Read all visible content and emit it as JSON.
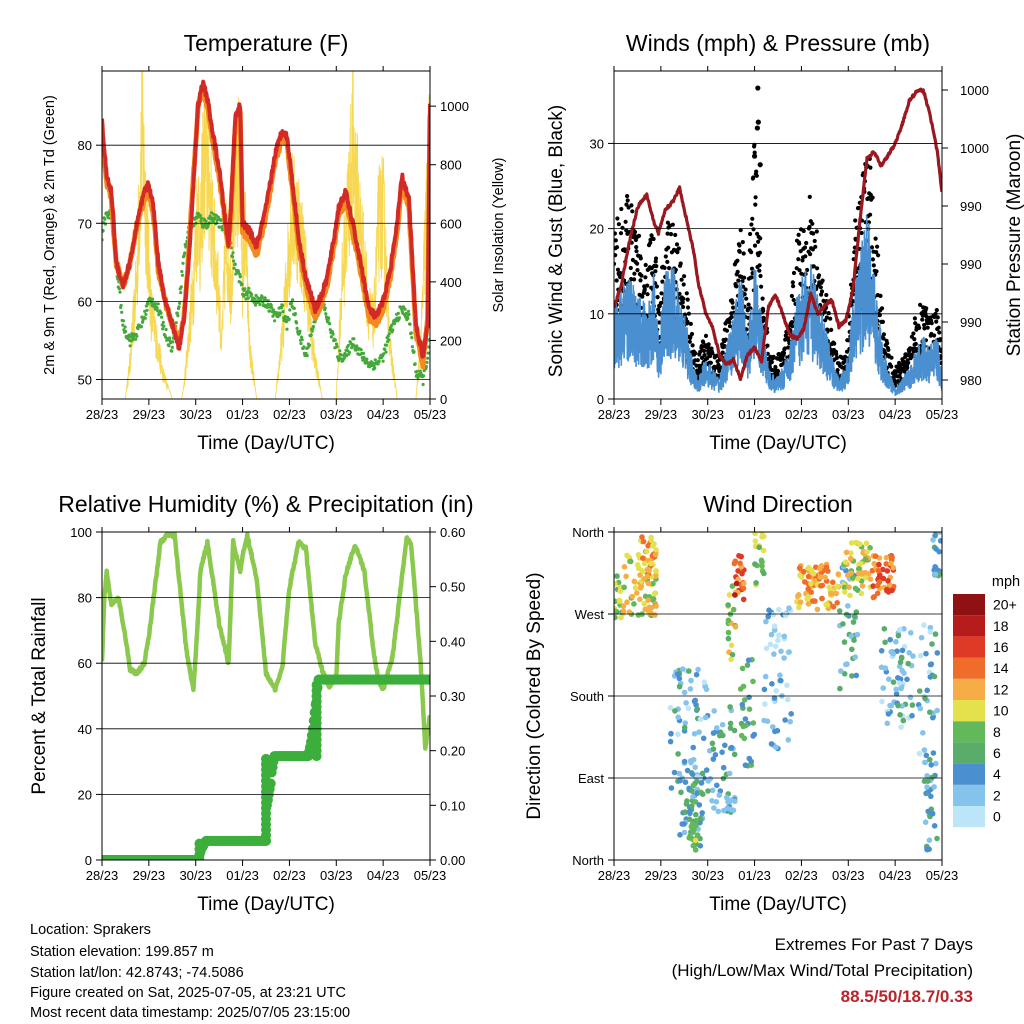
{
  "colors": {
    "temp2m": "#d42a26",
    "temp9m": "#f28a1e",
    "dewpoint": "#45a83a",
    "solar": "#f5d64a",
    "gust": "#000000",
    "wind": "#4a8fcf",
    "pressure": "#9a1820",
    "rh": "#8ac84e",
    "precip": "#3cae3c",
    "extremes": "#b8252a"
  },
  "x_ticks": [
    "28/23",
    "29/23",
    "30/23",
    "01/23",
    "02/23",
    "03/23",
    "04/23",
    "05/23"
  ],
  "chart_data": [
    {
      "id": "temperature",
      "type": "line",
      "title": "Temperature (F)",
      "xlabel": "Time (Day/UTC)",
      "ylabel": "2m & 9m T (Red, Orange) & 2m Td (Green)",
      "ylabel_right": "Solar Insolation (Yellow)",
      "ylim": [
        47.5,
        89.5
      ],
      "yticks": [
        50,
        60,
        70,
        80
      ],
      "ylim_right": [
        0,
        1120
      ],
      "yticks_right": [
        0,
        200,
        400,
        600,
        800,
        1000
      ],
      "grid": true,
      "x": [
        0,
        0.04,
        0.1,
        0.2,
        0.25,
        0.3,
        0.45,
        0.6,
        0.75,
        0.9,
        1.0,
        1.1,
        1.2,
        1.35,
        1.5,
        1.65,
        1.75,
        1.85,
        1.95,
        2.05,
        2.15,
        2.25,
        2.35,
        2.5,
        2.7,
        2.75,
        2.85,
        2.95,
        3.0,
        3.15,
        3.3,
        3.5,
        3.7,
        3.85,
        3.95,
        4.05,
        4.2,
        4.35,
        4.55,
        4.7,
        4.8,
        4.95,
        5.05,
        5.2,
        5.35,
        5.55,
        5.7,
        5.85,
        6.0,
        6.15,
        6.3,
        6.4,
        6.55,
        6.7,
        6.85,
        6.95,
        7.0
      ],
      "series": [
        {
          "key": "temp2m",
          "values": [
            83,
            80,
            76,
            74,
            70,
            65,
            62,
            65,
            70,
            74,
            75,
            72,
            65,
            60,
            57,
            54,
            58,
            65,
            75,
            85,
            88,
            86,
            82,
            77,
            67,
            72,
            84,
            85,
            70,
            69,
            67,
            72,
            79,
            82,
            81,
            76,
            68,
            63,
            59,
            61,
            63,
            68,
            72,
            74,
            70,
            64,
            59,
            58,
            60,
            64,
            70,
            76,
            73,
            57,
            53,
            57,
            85
          ]
        },
        {
          "key": "temp9m",
          "values": [
            82,
            79,
            75,
            73,
            69,
            65,
            62,
            65,
            70,
            73,
            74,
            71,
            64,
            60,
            57,
            55,
            58,
            66,
            76,
            85,
            87,
            85,
            81,
            76,
            67,
            71,
            83,
            84,
            69,
            68,
            66,
            71,
            78,
            81,
            80,
            75,
            67,
            62,
            58,
            60,
            62,
            67,
            71,
            73,
            69,
            63,
            58,
            57,
            59,
            63,
            69,
            75,
            72,
            56,
            52,
            58,
            84
          ]
        },
        {
          "key": "dewpoint",
          "values": [
            68.5,
            70,
            71,
            71,
            69,
            65,
            57,
            55,
            56,
            58,
            60,
            60,
            59,
            56,
            54,
            60,
            66,
            69,
            70,
            71,
            70,
            70,
            71,
            70,
            69,
            67,
            64,
            63,
            61,
            61,
            60,
            60,
            58,
            59,
            57,
            60,
            56,
            53,
            58,
            60,
            58,
            55,
            53,
            53,
            55,
            53,
            52,
            52,
            53,
            56,
            58,
            59,
            58,
            51,
            50,
            53,
            55
          ]
        }
      ],
      "solar_series": {
        "x": [
          0.1,
          0.3,
          0.5,
          0.6,
          0.75,
          0.85,
          0.95,
          1.05,
          1.15,
          1.3,
          1.5,
          1.7,
          1.75,
          1.85,
          1.95,
          2.05,
          2.1,
          2.15,
          2.25,
          2.35,
          2.5,
          2.55,
          2.65,
          2.75,
          2.85,
          2.95,
          3.0,
          3.05,
          3.15,
          3.3,
          3.5,
          3.7,
          3.85,
          3.95,
          4.05,
          4.2,
          4.35,
          4.5,
          4.7,
          4.85,
          5.0,
          5.1,
          5.2,
          5.35,
          5.5,
          5.7,
          5.8,
          5.9,
          6.0,
          6.15,
          6.3,
          6.5,
          6.7,
          6.8,
          6.9,
          7.0
        ],
        "values": [
          0,
          0,
          0,
          150,
          500,
          1100,
          700,
          350,
          250,
          100,
          0,
          0,
          50,
          250,
          450,
          800,
          600,
          900,
          950,
          700,
          400,
          200,
          650,
          450,
          850,
          950,
          500,
          700,
          200,
          0,
          0,
          0,
          250,
          500,
          750,
          700,
          500,
          200,
          0,
          0,
          0,
          400,
          650,
          1000,
          700,
          350,
          300,
          700,
          750,
          200,
          0,
          0,
          0,
          200,
          650,
          1000
        ]
      }
    },
    {
      "id": "winds",
      "type": "line",
      "title": "Winds (mph) & Pressure (mb)",
      "xlabel": "Time (Day/UTC)",
      "ylabel": "Sonic Wind & Gust (Blue, Black)",
      "ylabel_right": "Station Pressure (Maroon)",
      "ylim": [
        0,
        38.5
      ],
      "yticks": [
        0,
        10,
        20,
        30
      ],
      "yticks_right_labels": [
        "980",
        "990",
        "990",
        "990",
        "990",
        "1000",
        "1000"
      ],
      "grid": true,
      "x": [
        0,
        0.15,
        0.3,
        0.5,
        0.7,
        0.85,
        0.95,
        1.1,
        1.25,
        1.4,
        1.55,
        1.7,
        1.8,
        1.95,
        2.1,
        2.25,
        2.4,
        2.55,
        2.7,
        2.85,
        3.0,
        3.15,
        3.3,
        3.45,
        3.6,
        3.75,
        3.9,
        4.05,
        4.2,
        4.35,
        4.5,
        4.65,
        4.8,
        4.95,
        5.1,
        5.25,
        5.4,
        5.55,
        5.7,
        5.85,
        6.0,
        6.15,
        6.3,
        6.45,
        6.6,
        6.75,
        6.9,
        7.0
      ],
      "wind_values": [
        9,
        11,
        12,
        10,
        9,
        12,
        6,
        12,
        13,
        10,
        7,
        3,
        2,
        4,
        3,
        2,
        5,
        8,
        12,
        6,
        13,
        8,
        3,
        2,
        3,
        5,
        10,
        12,
        13,
        10,
        7,
        4,
        2,
        3,
        9,
        14,
        18,
        12,
        6,
        3,
        1,
        2,
        3,
        5,
        6,
        5,
        6,
        2
      ],
      "gust_values": [
        17,
        19,
        20,
        17,
        15,
        18,
        9,
        17,
        18,
        15,
        11,
        5,
        4,
        7,
        5,
        4,
        8,
        12,
        18,
        10,
        27,
        13,
        5,
        4,
        5,
        8,
        16,
        19,
        20,
        16,
        11,
        7,
        4,
        5,
        16,
        21,
        26,
        20,
        10,
        5,
        3,
        4,
        5,
        9,
        10,
        8,
        9,
        4
      ],
      "gust_peaks": [
        {
          "x": 3.07,
          "y": 36.5
        },
        {
          "x": 3.08,
          "y": 32.5
        },
        {
          "x": 3.06,
          "y": 31.8
        },
        {
          "x": 3.0,
          "y": 28.5
        },
        {
          "x": 3.12,
          "y": 27.5
        }
      ],
      "pressure_right": [
        10.8,
        13.2,
        17.7,
        22.5,
        24.0,
        20.8,
        19.5,
        22.3,
        23.1,
        24.8,
        21.0,
        17.3,
        13.6,
        10.2,
        8.4,
        5.2,
        4.0,
        4.6,
        2.4,
        5.2,
        6.0,
        4.5,
        10.9,
        12.2,
        10.0,
        7.5,
        7.1,
        8.2,
        12.3,
        10.0,
        11.0,
        11.6,
        8.5,
        9.3,
        12.8,
        21.0,
        28.2,
        29.0,
        27.4,
        28.6,
        30.0,
        32.2,
        35.0,
        36.0,
        36.3,
        33.2,
        29.0,
        24.2
      ]
    },
    {
      "id": "humidity",
      "type": "line",
      "title": "Relative Humidity (%) & Precipitation (in)",
      "xlabel": "Time (Day/UTC)",
      "ylabel": "Percent & Total Rainfall",
      "ylim": [
        0,
        100
      ],
      "yticks": [
        0,
        20,
        40,
        60,
        80,
        100
      ],
      "ylim_right": [
        0,
        0.6
      ],
      "yticks_right": [
        "0.00",
        "0.10",
        "0.20",
        "0.30",
        "0.40",
        "0.50",
        "0.60"
      ],
      "grid": true,
      "x": [
        0,
        0.05,
        0.1,
        0.2,
        0.35,
        0.5,
        0.6,
        0.75,
        0.9,
        1.0,
        1.1,
        1.25,
        1.4,
        1.55,
        1.7,
        1.8,
        1.95,
        2.0,
        2.1,
        2.25,
        2.5,
        2.7,
        2.8,
        2.95,
        3.0,
        3.1,
        3.3,
        3.5,
        3.7,
        3.85,
        4.0,
        4.2,
        4.35,
        4.55,
        4.7,
        4.85,
        5.0,
        5.05,
        5.2,
        5.4,
        5.6,
        5.8,
        5.9,
        6.0,
        6.2,
        6.4,
        6.5,
        6.6,
        6.8,
        6.9,
        7.0
      ],
      "rh_values": [
        61,
        80,
        88,
        78,
        80,
        68,
        58,
        57,
        60,
        68,
        80,
        97,
        99,
        99,
        78,
        64,
        52,
        62,
        88,
        97,
        72,
        60,
        97,
        88,
        93,
        99,
        86,
        57,
        52,
        59,
        83,
        97,
        95,
        66,
        58,
        53,
        56,
        72,
        87,
        96,
        88,
        63,
        55,
        52,
        62,
        86,
        98,
        96,
        60,
        34,
        44
      ],
      "precip": {
        "x": [
          0,
          2.05,
          2.12,
          2.22,
          2.55,
          2.62,
          3.5,
          3.52,
          3.6,
          3.62,
          3.68,
          4.4,
          4.45,
          4.5,
          4.58,
          4.62,
          4.75,
          5.85,
          6.35,
          7.0
        ],
        "values": [
          0,
          0,
          0.02,
          0.035,
          0.035,
          0.035,
          0.035,
          0.1,
          0.14,
          0.16,
          0.19,
          0.19,
          0.21,
          0.24,
          0.3,
          0.33,
          0.33,
          0.33,
          0.33,
          0.33
        ]
      }
    },
    {
      "id": "direction",
      "type": "scatter",
      "title": "Wind Direction",
      "xlabel": "Time (Day/UTC)",
      "ylabel": "Direction (Colored By Speed)",
      "ytick_labels": [
        "North",
        "East",
        "South",
        "West",
        "North"
      ],
      "ylim": [
        0,
        360
      ],
      "grid": true,
      "colorbar": {
        "title": "mph",
        "labels": [
          "0",
          "2",
          "4",
          "6",
          "8",
          "10",
          "12",
          "14",
          "16",
          "18",
          "20+"
        ],
        "colors": [
          "#bde5f8",
          "#86c3ea",
          "#4a8fcf",
          "#5aac6a",
          "#63b85a",
          "#e4e14c",
          "#f7ad45",
          "#f06c2b",
          "#de3a26",
          "#b71c1c",
          "#8f1114"
        ]
      }
    }
  ],
  "info": {
    "location": "Location: Sprakers",
    "elevation": "Station elevation: 199.857 m",
    "latlon": "Station lat/lon: 42.8743; -74.5086",
    "created": "Figure created on Sat, 2025-07-05, at 23:21 UTC",
    "recent": "Most recent data timestamp: 2025/07/05 23:15:00"
  },
  "extremes": {
    "title": "Extremes For Past 7 Days",
    "subtitle": "(High/Low/Max Wind/Total Precipitation)",
    "values": "88.5/50/18.7/0.33"
  }
}
